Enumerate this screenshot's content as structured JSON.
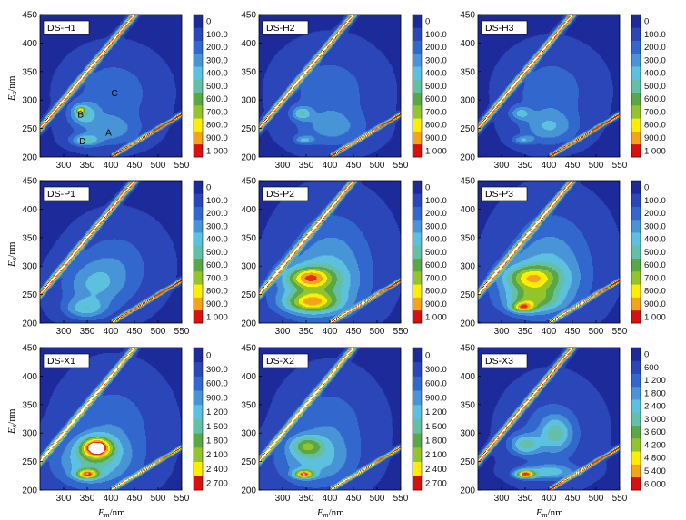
{
  "figure": {
    "xlabel": "Em/nm",
    "ylabel": "Ex/nm"
  },
  "chart_data": [
    {
      "type": "heatmap",
      "title": "DS-H1",
      "xlim": [
        250,
        550
      ],
      "ylim": [
        200,
        450
      ],
      "xticks": [
        300,
        350,
        400,
        450,
        500,
        550
      ],
      "yticks": [
        200,
        250,
        300,
        350,
        400,
        450
      ],
      "levels": [
        "0",
        "100.0",
        "200.0",
        "300.0",
        "400.0",
        "500.0",
        "600.0",
        "700.0",
        "800.0",
        "900.0",
        "1 000"
      ],
      "levels_max": 1000,
      "scatter_intensity": 1000,
      "peak_labels": [
        {
          "text": "A",
          "x": 395,
          "y": 243
        },
        {
          "text": "B",
          "x": 336,
          "y": 275
        },
        {
          "text": "C",
          "x": 408,
          "y": 312
        },
        {
          "text": "D",
          "x": 340,
          "y": 228
        }
      ],
      "fluorophores": [
        {
          "em": 340,
          "ex": 277,
          "sem": 20,
          "sex": 13,
          "amp": 340
        },
        {
          "em": 345,
          "ex": 229,
          "sem": 20,
          "sex": 7,
          "amp": 350
        },
        {
          "em": 395,
          "ex": 247,
          "sem": 45,
          "sex": 18,
          "amp": 230
        },
        {
          "em": 405,
          "ex": 312,
          "sem": 55,
          "sex": 40,
          "amp": 190
        },
        {
          "em": 335,
          "ex": 282,
          "sem": 6,
          "sex": 4,
          "amp": 440
        }
      ]
    },
    {
      "type": "heatmap",
      "title": "DS-H2",
      "xlim": [
        250,
        550
      ],
      "ylim": [
        200,
        450
      ],
      "xticks": [
        300,
        350,
        400,
        450,
        500,
        550
      ],
      "yticks": [
        200,
        250,
        300,
        350,
        400,
        450
      ],
      "levels": [
        "0",
        "100.0",
        "200.0",
        "300.0",
        "400.0",
        "500.0",
        "600.0",
        "700.0",
        "800.0",
        "900.0",
        "1 000"
      ],
      "levels_max": 1000,
      "scatter_intensity": 1000,
      "peak_labels": [],
      "fluorophores": [
        {
          "em": 340,
          "ex": 277,
          "sem": 14,
          "sex": 8,
          "amp": 320
        },
        {
          "em": 345,
          "ex": 230,
          "sem": 14,
          "sex": 5,
          "amp": 260
        },
        {
          "em": 405,
          "ex": 250,
          "sem": 50,
          "sex": 22,
          "amp": 200
        },
        {
          "em": 400,
          "ex": 315,
          "sem": 60,
          "sex": 45,
          "amp": 170
        }
      ]
    },
    {
      "type": "heatmap",
      "title": "DS-H3",
      "xlim": [
        250,
        550
      ],
      "ylim": [
        200,
        450
      ],
      "xticks": [
        300,
        350,
        400,
        450,
        500,
        550
      ],
      "yticks": [
        200,
        250,
        300,
        350,
        400,
        450
      ],
      "levels": [
        "0",
        "100.0",
        "200.0",
        "300.0",
        "400.0",
        "500.0",
        "600.0",
        "700.0",
        "800.0",
        "900.0",
        "1 000"
      ],
      "levels_max": 1000,
      "scatter_intensity": 1000,
      "peak_labels": [],
      "fluorophores": [
        {
          "em": 340,
          "ex": 277,
          "sem": 15,
          "sex": 8,
          "amp": 260
        },
        {
          "em": 345,
          "ex": 230,
          "sem": 15,
          "sex": 5,
          "amp": 250
        },
        {
          "em": 400,
          "ex": 252,
          "sem": 40,
          "sex": 20,
          "amp": 260
        },
        {
          "em": 405,
          "ex": 315,
          "sem": 55,
          "sex": 42,
          "amp": 175
        }
      ]
    },
    {
      "type": "heatmap",
      "title": "DS-P1",
      "xlim": [
        250,
        550
      ],
      "ylim": [
        200,
        450
      ],
      "xticks": [
        300,
        350,
        400,
        450,
        500,
        550
      ],
      "yticks": [
        200,
        250,
        300,
        350,
        400,
        450
      ],
      "levels": [
        "0",
        "100.0",
        "200.0",
        "300.0",
        "400.0",
        "500.0",
        "600.0",
        "700.0",
        "800.0",
        "900.0",
        "1 000"
      ],
      "levels_max": 1000,
      "scatter_intensity": 1000,
      "peak_labels": [],
      "fluorophores": [
        {
          "em": 345,
          "ex": 225,
          "sem": 30,
          "sex": 12,
          "amp": 280
        },
        {
          "em": 360,
          "ex": 265,
          "sem": 45,
          "sex": 30,
          "amp": 240
        },
        {
          "em": 410,
          "ex": 300,
          "sem": 55,
          "sex": 45,
          "amp": 170
        }
      ]
    },
    {
      "type": "heatmap",
      "title": "DS-P2",
      "xlim": [
        250,
        550
      ],
      "ylim": [
        200,
        450
      ],
      "xticks": [
        300,
        350,
        400,
        450,
        500,
        550
      ],
      "yticks": [
        200,
        250,
        300,
        350,
        400,
        450
      ],
      "levels": [
        "0",
        "100.0",
        "200.0",
        "300.0",
        "400.0",
        "500.0",
        "600.0",
        "700.0",
        "800.0",
        "900.0",
        "1 000"
      ],
      "levels_max": 1000,
      "scatter_intensity": 1000,
      "peak_labels": [],
      "fluorophores": [
        {
          "em": 355,
          "ex": 280,
          "sem": 32,
          "sex": 12,
          "amp": 500
        },
        {
          "em": 360,
          "ex": 236,
          "sem": 38,
          "sex": 12,
          "amp": 520
        },
        {
          "em": 370,
          "ex": 260,
          "sem": 60,
          "sex": 35,
          "amp": 380
        },
        {
          "em": 405,
          "ex": 320,
          "sem": 60,
          "sex": 55,
          "amp": 220
        }
      ]
    },
    {
      "type": "heatmap",
      "title": "DS-P3",
      "xlim": [
        250,
        550
      ],
      "ylim": [
        200,
        450
      ],
      "xticks": [
        300,
        350,
        400,
        450,
        500,
        550
      ],
      "yticks": [
        200,
        250,
        300,
        350,
        400,
        450
      ],
      "levels": [
        "0",
        "100.0",
        "200.0",
        "300.0",
        "400.0",
        "500.0",
        "600.0",
        "700.0",
        "800.0",
        "900.0",
        "1 000"
      ],
      "levels_max": 1000,
      "scatter_intensity": 1000,
      "peak_labels": [],
      "fluorophores": [
        {
          "em": 345,
          "ex": 228,
          "sem": 16,
          "sex": 6,
          "amp": 560
        },
        {
          "em": 365,
          "ex": 240,
          "sem": 38,
          "sex": 14,
          "amp": 330
        },
        {
          "em": 360,
          "ex": 280,
          "sem": 38,
          "sex": 14,
          "amp": 400
        },
        {
          "em": 375,
          "ex": 265,
          "sem": 60,
          "sex": 35,
          "amp": 330
        },
        {
          "em": 405,
          "ex": 320,
          "sem": 60,
          "sex": 55,
          "amp": 220
        }
      ]
    },
    {
      "type": "heatmap",
      "title": "DS-X1",
      "xlim": [
        250,
        550
      ],
      "ylim": [
        200,
        450
      ],
      "xticks": [
        300,
        350,
        400,
        450,
        500,
        550
      ],
      "yticks": [
        200,
        250,
        300,
        350,
        400,
        450
      ],
      "levels": [
        "0",
        "300.0",
        "600.0",
        "900.0",
        "1 200",
        "1 500",
        "1 800",
        "2 100",
        "2 400",
        "2 700"
      ],
      "levels_max": 2700,
      "scatter_intensity": 2700,
      "peak_labels": [],
      "fluorophores": [
        {
          "em": 370,
          "ex": 275,
          "sem": 22,
          "sex": 12,
          "amp": 2500
        },
        {
          "em": 350,
          "ex": 228,
          "sem": 16,
          "sex": 6,
          "amp": 2000
        },
        {
          "em": 360,
          "ex": 250,
          "sem": 55,
          "sex": 30,
          "amp": 1100
        },
        {
          "em": 405,
          "ex": 310,
          "sem": 60,
          "sex": 55,
          "amp": 520
        }
      ]
    },
    {
      "type": "heatmap",
      "title": "DS-X2",
      "xlim": [
        250,
        550
      ],
      "ylim": [
        200,
        450
      ],
      "xticks": [
        300,
        350,
        400,
        450,
        500,
        550
      ],
      "yticks": [
        200,
        250,
        300,
        350,
        400,
        450
      ],
      "levels": [
        "0",
        "300.0",
        "600.0",
        "900.0",
        "1 200",
        "1 500",
        "1 800",
        "2 100",
        "2 400",
        "2 700"
      ],
      "levels_max": 2700,
      "scatter_intensity": 2700,
      "peak_labels": [],
      "fluorophores": [
        {
          "em": 345,
          "ex": 228,
          "sem": 14,
          "sex": 5,
          "amp": 2300
        },
        {
          "em": 350,
          "ex": 278,
          "sem": 25,
          "sex": 12,
          "amp": 1100
        },
        {
          "em": 365,
          "ex": 250,
          "sem": 55,
          "sex": 30,
          "amp": 850
        },
        {
          "em": 400,
          "ex": 312,
          "sem": 55,
          "sex": 50,
          "amp": 520
        }
      ]
    },
    {
      "type": "heatmap",
      "title": "DS-X3",
      "xlim": [
        250,
        550
      ],
      "ylim": [
        200,
        450
      ],
      "xticks": [
        300,
        350,
        400,
        450,
        500,
        550
      ],
      "yticks": [
        200,
        250,
        300,
        350,
        400,
        450
      ],
      "levels": [
        "0",
        "600",
        "1 200",
        "1 800",
        "2 400",
        "3 000",
        "3 600",
        "4 200",
        "4 800",
        "5 400",
        "6 000"
      ],
      "levels_max": 6000,
      "scatter_intensity": 6000,
      "peak_labels": [],
      "fluorophores": [
        {
          "em": 350,
          "ex": 228,
          "sem": 14,
          "sex": 5,
          "amp": 5000
        },
        {
          "em": 400,
          "ex": 232,
          "sem": 40,
          "sex": 9,
          "amp": 1900
        },
        {
          "em": 350,
          "ex": 280,
          "sem": 22,
          "sex": 12,
          "amp": 2300
        },
        {
          "em": 415,
          "ex": 300,
          "sem": 22,
          "sex": 20,
          "amp": 2000
        },
        {
          "em": 405,
          "ex": 300,
          "sem": 55,
          "sex": 50,
          "amp": 900
        }
      ]
    }
  ],
  "colors": {
    "ramp": [
      "#1d2a99",
      "#2b46b8",
      "#3268cd",
      "#4795d6",
      "#5cc1de",
      "#63c0a6",
      "#5aa845",
      "#93c42c",
      "#ffee00",
      "#f5a318",
      "#e0320e",
      "#d81010"
    ],
    "scatter_core": "#ffffff"
  }
}
